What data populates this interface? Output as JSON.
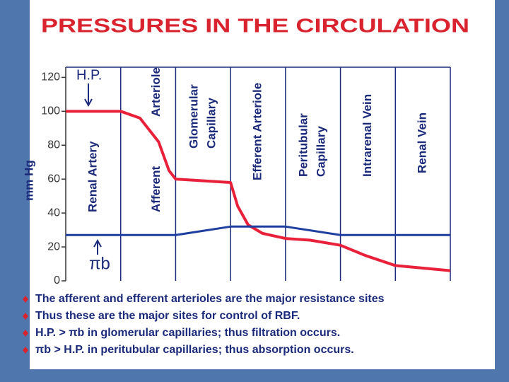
{
  "chart_data": {
    "type": "line",
    "title": "PRESSURES IN THE CIRCULATION",
    "y_label": "mm Hg",
    "regions": [
      {
        "lines": [
          "Renal Artery"
        ]
      },
      {
        "lines": [
          "Afferent",
          "Arteriole"
        ]
      },
      {
        "lines": [
          "Glomerular",
          "Capillary"
        ]
      },
      {
        "lines": [
          "Efferent Arteriole"
        ]
      },
      {
        "lines": [
          "Peritubular",
          "Capillary"
        ]
      },
      {
        "lines": [
          "Intrarenal Vein"
        ]
      },
      {
        "lines": [
          "Renal Vein"
        ]
      }
    ],
    "xlim": [
      0,
      7
    ],
    "ylim": [
      0,
      126
    ],
    "yticks": [
      0,
      20,
      40,
      60,
      80,
      100,
      120
    ],
    "series": [
      {
        "name": "H.P.",
        "color": "#e8203a",
        "x": [
          0,
          1,
          1.35,
          1.69,
          1.88,
          2,
          3,
          3.13,
          3.32,
          3.58,
          4,
          4.45,
          5,
          5.45,
          6,
          7
        ],
        "values": [
          100,
          100,
          96,
          82,
          65,
          60,
          58,
          44,
          33,
          28,
          25,
          24,
          21,
          15,
          9,
          6
        ]
      },
      {
        "name": "πb",
        "color": "#1f3fa0",
        "x": [
          0,
          2,
          3,
          4,
          5,
          7
        ],
        "values": [
          27,
          27,
          32,
          32,
          27,
          27
        ]
      }
    ],
    "bullets": [
      "The afferent and efferent arterioles are the major resistance sites",
      "Thus these are the major sites for control of RBF.",
      "H.P. > πb  in glomerular capillaries; thus filtration occurs.",
      "πb > H.P. in peritubular capillaries; thus absorption occurs."
    ]
  }
}
